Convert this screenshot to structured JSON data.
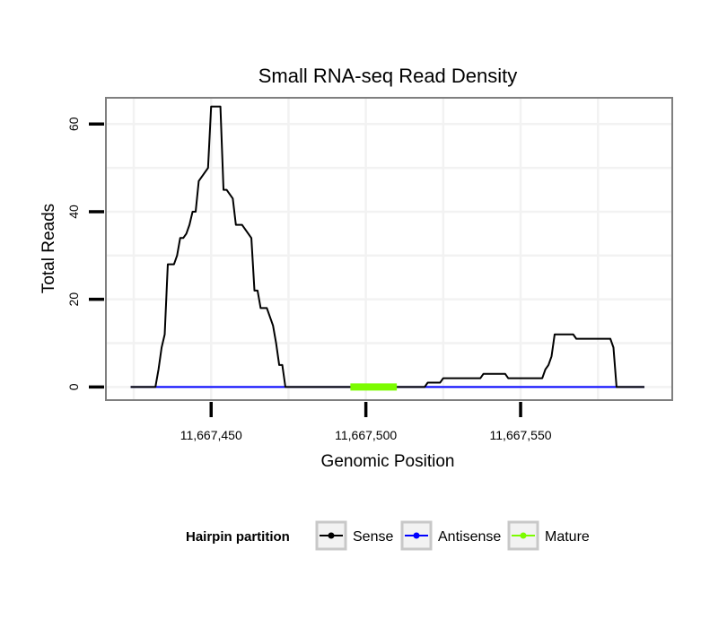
{
  "chart_data": {
    "type": "line",
    "title": "Small RNA-seq Read Density",
    "xlabel": "Genomic Position",
    "ylabel": "Total Reads",
    "xlim": [
      11667416,
      11667599
    ],
    "ylim": [
      -3,
      66
    ],
    "x_ticks": [
      {
        "value": 11667450,
        "label": "11,667,450"
      },
      {
        "value": 11667500,
        "label": "11,667,500"
      },
      {
        "value": 11667550,
        "label": "11,667,550"
      }
    ],
    "y_ticks": [
      {
        "value": 0,
        "label": "0"
      },
      {
        "value": 20,
        "label": "20"
      },
      {
        "value": 40,
        "label": "40"
      },
      {
        "value": 60,
        "label": "60"
      }
    ],
    "legend": {
      "title": "Hairpin partition",
      "position": "bottom",
      "entries": [
        {
          "label": "Sense",
          "color": "#000000"
        },
        {
          "label": "Antisense",
          "color": "#0000ff"
        },
        {
          "label": "Mature",
          "color": "#7cfc00"
        }
      ]
    },
    "series": [
      {
        "name": "Sense",
        "color": "#000000",
        "points": [
          [
            11667424,
            0
          ],
          [
            11667432,
            0
          ],
          [
            11667433,
            4
          ],
          [
            11667434,
            9
          ],
          [
            11667435,
            12
          ],
          [
            11667436,
            28
          ],
          [
            11667437,
            28
          ],
          [
            11667438,
            28
          ],
          [
            11667439,
            30
          ],
          [
            11667440,
            34
          ],
          [
            11667441,
            34
          ],
          [
            11667442,
            35
          ],
          [
            11667443,
            37
          ],
          [
            11667444,
            40
          ],
          [
            11667445,
            40
          ],
          [
            11667446,
            47
          ],
          [
            11667447,
            48
          ],
          [
            11667448,
            49
          ],
          [
            11667449,
            50
          ],
          [
            11667450,
            64
          ],
          [
            11667451,
            64
          ],
          [
            11667452,
            64
          ],
          [
            11667453,
            64
          ],
          [
            11667454,
            45
          ],
          [
            11667455,
            45
          ],
          [
            11667456,
            44
          ],
          [
            11667457,
            43
          ],
          [
            11667458,
            37
          ],
          [
            11667459,
            37
          ],
          [
            11667460,
            37
          ],
          [
            11667461,
            36
          ],
          [
            11667462,
            35
          ],
          [
            11667463,
            34
          ],
          [
            11667464,
            22
          ],
          [
            11667465,
            22
          ],
          [
            11667466,
            18
          ],
          [
            11667467,
            18
          ],
          [
            11667468,
            18
          ],
          [
            11667469,
            16
          ],
          [
            11667470,
            14
          ],
          [
            11667471,
            10
          ],
          [
            11667472,
            5
          ],
          [
            11667473,
            5
          ],
          [
            11667474,
            0
          ],
          [
            11667516,
            0
          ],
          [
            11667519,
            0
          ],
          [
            11667520,
            1
          ],
          [
            11667524,
            1
          ],
          [
            11667525,
            2
          ],
          [
            11667537,
            2
          ],
          [
            11667538,
            3
          ],
          [
            11667545,
            3
          ],
          [
            11667546,
            2
          ],
          [
            11667557,
            2
          ],
          [
            11667558,
            4
          ],
          [
            11667559,
            5
          ],
          [
            11667560,
            7
          ],
          [
            11667561,
            12
          ],
          [
            11667567,
            12
          ],
          [
            11667568,
            11
          ],
          [
            11667579,
            11
          ],
          [
            11667580,
            9
          ],
          [
            11667581,
            0
          ],
          [
            11667590,
            0
          ]
        ]
      },
      {
        "name": "Antisense",
        "color": "#0000ff",
        "points": [
          [
            11667424,
            0
          ],
          [
            11667590,
            0
          ]
        ]
      },
      {
        "name": "Mature",
        "color": "#7cfc00",
        "points": [
          [
            11667495,
            0
          ],
          [
            11667510,
            0
          ]
        ]
      }
    ]
  }
}
